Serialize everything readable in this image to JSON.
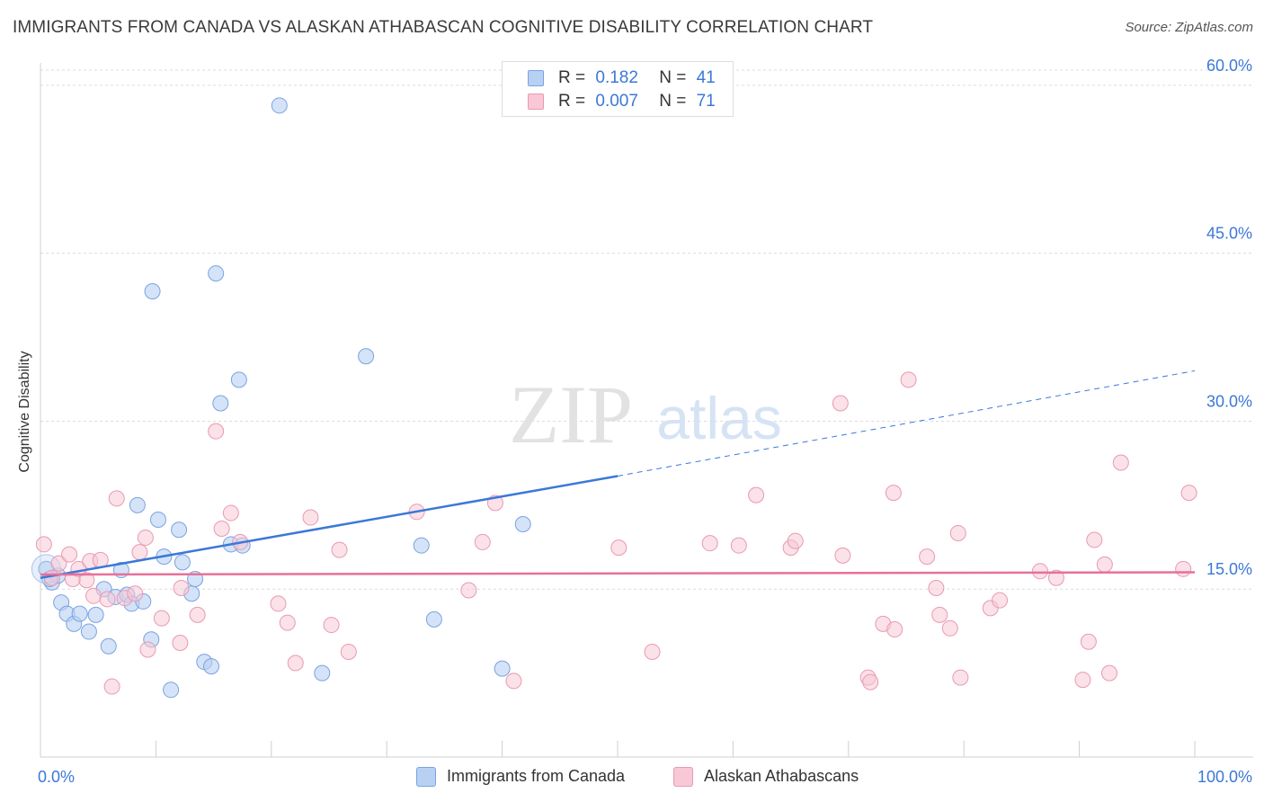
{
  "title": "IMMIGRANTS FROM CANADA VS ALASKAN ATHABASCAN COGNITIVE DISABILITY CORRELATION CHART",
  "source": "Source: ZipAtlas.com",
  "watermark": {
    "zip": "ZIP",
    "atlas": "atlas"
  },
  "legend": {
    "rows": [
      {
        "r_label": "R =",
        "r_value": "0.182",
        "n_label": "N =",
        "n_value": "41",
        "fill": "#b8d1f3",
        "stroke": "#7aa3e0"
      },
      {
        "r_label": "R =",
        "r_value": "0.007",
        "n_label": "N =",
        "n_value": "71",
        "fill": "#f8c8d6",
        "stroke": "#e89ab2"
      }
    ]
  },
  "bottom_legend": [
    {
      "label": "Immigrants from Canada",
      "fill": "#b8d1f3",
      "stroke": "#7aa3e0"
    },
    {
      "label": "Alaskan Athabascans",
      "fill": "#f8c8d6",
      "stroke": "#e89ab2"
    }
  ],
  "chart_data": {
    "type": "scatter",
    "title": "IMMIGRANTS FROM CANADA VS ALASKAN ATHABASCAN COGNITIVE DISABILITY CORRELATION CHART",
    "xlabel": "",
    "ylabel": "Cognitive Disability",
    "xlim": [
      0,
      100
    ],
    "ylim": [
      0,
      62
    ],
    "x_tick_labels": [
      "0.0%",
      "100.0%"
    ],
    "y_ticks": [
      15,
      30,
      45,
      60
    ],
    "y_tick_labels": [
      "15.0%",
      "30.0%",
      "45.0%",
      "60.0%"
    ],
    "grid": true,
    "colors": {
      "blue": "#3b78d8",
      "blue_fill": "#b8d1f3",
      "pink": "#e8709a",
      "pink_fill": "#f8c8d6",
      "axis_text": "#3b78d8"
    },
    "series": [
      {
        "name": "Immigrants from Canada",
        "r": 0.182,
        "n": 41,
        "trend": {
          "x0": 0,
          "y0": 16.0,
          "x1": 50,
          "y1": 25.1,
          "dash_to_x": 100,
          "dash_to_y": 34.5
        },
        "points": [
          [
            0.5,
            16.8
          ],
          [
            1.0,
            15.6
          ],
          [
            1.5,
            16.2
          ],
          [
            1.8,
            13.8
          ],
          [
            2.3,
            12.8
          ],
          [
            2.9,
            11.9
          ],
          [
            3.4,
            12.8
          ],
          [
            4.2,
            11.2
          ],
          [
            4.8,
            12.7
          ],
          [
            5.5,
            15.0
          ],
          [
            5.9,
            9.9
          ],
          [
            6.5,
            14.3
          ],
          [
            7.0,
            16.7
          ],
          [
            7.5,
            14.5
          ],
          [
            7.9,
            13.7
          ],
          [
            8.4,
            22.5
          ],
          [
            8.9,
            13.9
          ],
          [
            9.6,
            10.5
          ],
          [
            9.7,
            41.6
          ],
          [
            10.2,
            21.2
          ],
          [
            10.7,
            17.9
          ],
          [
            11.3,
            6.0
          ],
          [
            12.0,
            20.3
          ],
          [
            12.3,
            17.4
          ],
          [
            13.1,
            14.6
          ],
          [
            13.4,
            15.9
          ],
          [
            14.2,
            8.5
          ],
          [
            14.8,
            8.1
          ],
          [
            15.2,
            43.2
          ],
          [
            15.6,
            31.6
          ],
          [
            16.5,
            19.0
          ],
          [
            17.2,
            33.7
          ],
          [
            17.5,
            18.9
          ],
          [
            20.7,
            58.2
          ],
          [
            24.4,
            7.5
          ],
          [
            28.2,
            35.8
          ],
          [
            33.0,
            18.9
          ],
          [
            34.1,
            12.3
          ],
          [
            40.0,
            7.9
          ],
          [
            41.8,
            20.8
          ],
          [
            0.8,
            15.9
          ]
        ]
      },
      {
        "name": "Alaskan Athabascans",
        "r": 0.007,
        "n": 71,
        "trend": {
          "x0": 0,
          "y0": 16.3,
          "x1": 100,
          "y1": 16.5
        },
        "points": [
          [
            0.3,
            19.0
          ],
          [
            1.0,
            16.0
          ],
          [
            1.6,
            17.3
          ],
          [
            2.5,
            18.1
          ],
          [
            2.8,
            15.9
          ],
          [
            3.3,
            16.8
          ],
          [
            4.0,
            15.8
          ],
          [
            4.3,
            17.5
          ],
          [
            4.6,
            14.4
          ],
          [
            5.2,
            17.6
          ],
          [
            5.8,
            14.1
          ],
          [
            6.2,
            6.3
          ],
          [
            6.6,
            23.1
          ],
          [
            7.3,
            14.2
          ],
          [
            8.2,
            14.6
          ],
          [
            8.6,
            18.3
          ],
          [
            9.1,
            19.6
          ],
          [
            9.3,
            9.6
          ],
          [
            10.5,
            12.4
          ],
          [
            12.1,
            10.2
          ],
          [
            12.2,
            15.1
          ],
          [
            13.6,
            12.7
          ],
          [
            15.2,
            29.1
          ],
          [
            15.7,
            20.4
          ],
          [
            16.5,
            21.8
          ],
          [
            17.3,
            19.2
          ],
          [
            20.6,
            13.7
          ],
          [
            21.4,
            12.0
          ],
          [
            22.1,
            8.4
          ],
          [
            23.4,
            21.4
          ],
          [
            25.2,
            11.8
          ],
          [
            25.9,
            18.5
          ],
          [
            26.7,
            9.4
          ],
          [
            32.6,
            21.9
          ],
          [
            37.1,
            14.9
          ],
          [
            38.3,
            19.2
          ],
          [
            39.4,
            22.7
          ],
          [
            41.0,
            6.8
          ],
          [
            50.1,
            18.7
          ],
          [
            53.0,
            9.4
          ],
          [
            58.0,
            19.1
          ],
          [
            60.5,
            18.9
          ],
          [
            62.0,
            23.4
          ],
          [
            65.0,
            18.7
          ],
          [
            65.4,
            19.3
          ],
          [
            69.3,
            31.6
          ],
          [
            69.5,
            18.0
          ],
          [
            71.7,
            7.1
          ],
          [
            71.9,
            6.7
          ],
          [
            73.0,
            11.9
          ],
          [
            74.0,
            11.4
          ],
          [
            73.9,
            23.6
          ],
          [
            75.2,
            33.7
          ],
          [
            76.8,
            17.9
          ],
          [
            77.6,
            15.1
          ],
          [
            77.9,
            12.7
          ],
          [
            78.8,
            11.5
          ],
          [
            79.5,
            20.0
          ],
          [
            79.7,
            7.1
          ],
          [
            82.3,
            13.3
          ],
          [
            83.1,
            14.0
          ],
          [
            86.6,
            16.6
          ],
          [
            88.0,
            16.0
          ],
          [
            90.3,
            6.9
          ],
          [
            90.8,
            10.3
          ],
          [
            91.3,
            19.4
          ],
          [
            92.2,
            17.2
          ],
          [
            92.6,
            7.5
          ],
          [
            93.6,
            26.3
          ],
          [
            99.0,
            16.8
          ],
          [
            99.5,
            23.6
          ]
        ]
      }
    ]
  }
}
